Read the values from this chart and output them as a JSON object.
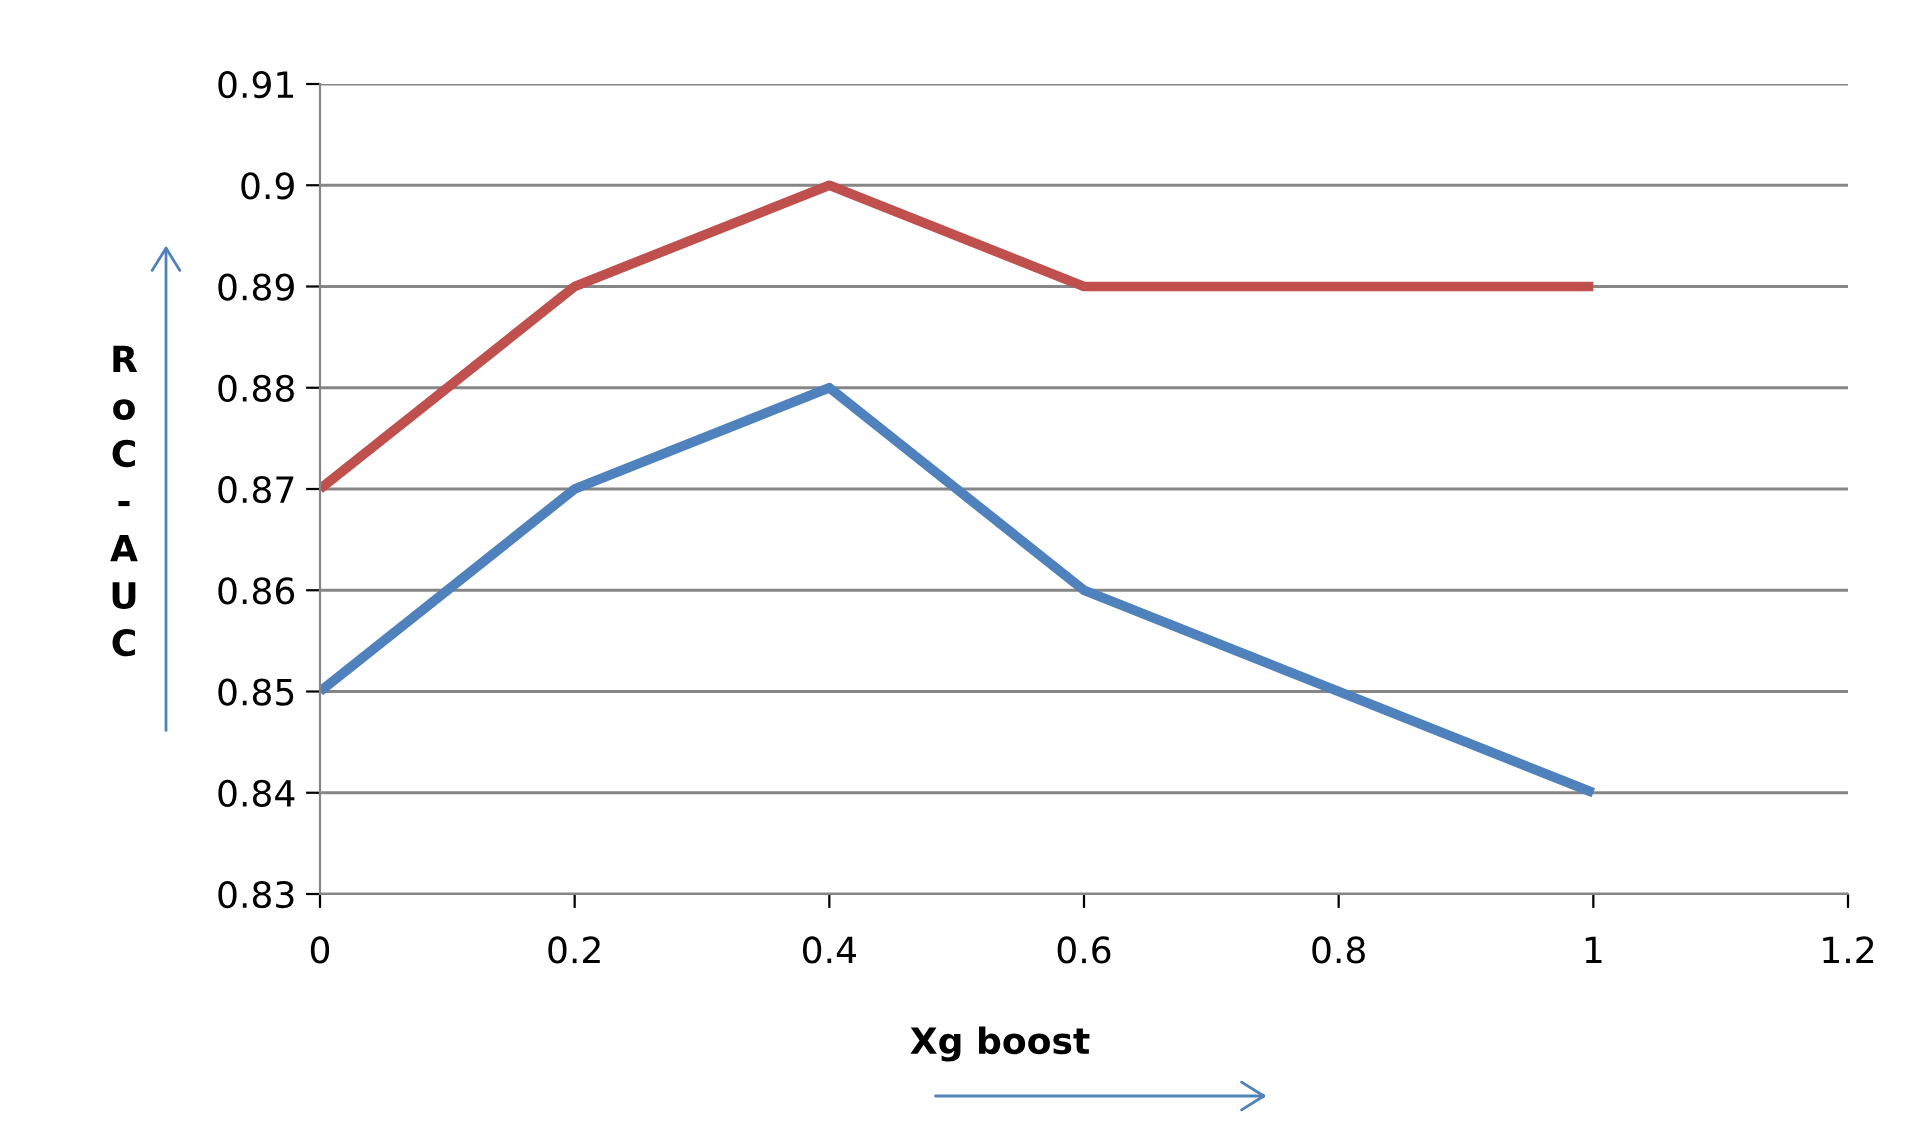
{
  "chart_data": {
    "type": "line",
    "xlabel": "Xg boost",
    "ylabel": "RoC-AUC",
    "x": [
      0,
      0.2,
      0.4,
      0.6,
      0.8,
      1
    ],
    "series": [
      {
        "color": "#c0504d",
        "values": [
          0.87,
          0.89,
          0.9,
          0.89,
          0.89,
          0.89
        ]
      },
      {
        "color": "#4f81bd",
        "values": [
          0.85,
          0.87,
          0.88,
          0.86,
          0.85,
          0.84
        ]
      }
    ],
    "xlim": [
      0,
      1.2
    ],
    "xticks": [
      0,
      0.2,
      0.4,
      0.6,
      0.8,
      1,
      1.2
    ],
    "ylim": [
      0.83,
      0.91
    ],
    "yticks": [
      0.83,
      0.84,
      0.85,
      0.86,
      0.87,
      0.88,
      0.89,
      0.9,
      0.91
    ],
    "grid": "y",
    "legend": false,
    "marker": "none",
    "line_style": "solid"
  }
}
